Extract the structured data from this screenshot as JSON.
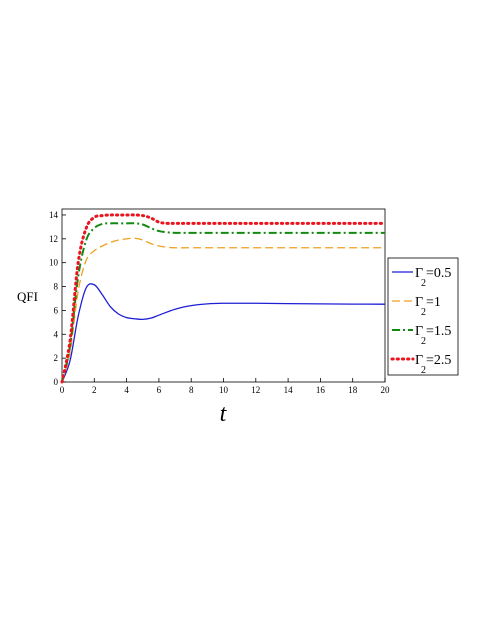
{
  "chart_data": {
    "type": "line",
    "xlabel": "t",
    "ylabel": "QFI",
    "xlim": [
      0,
      20
    ],
    "ylim": [
      0,
      14.5
    ],
    "xticks": [
      0,
      2,
      4,
      6,
      8,
      10,
      12,
      14,
      16,
      18,
      20
    ],
    "yticks": [
      0,
      2,
      4,
      6,
      8,
      10,
      12,
      14
    ],
    "grid": false,
    "legend_position": "right",
    "series": [
      {
        "name": "=0.5",
        "symbol": "Γ",
        "subscript": "2",
        "color": "#1f1fd6",
        "dash": "solid",
        "x": [
          0,
          0.5,
          1,
          1.5,
          2,
          2.5,
          3,
          3.5,
          4,
          4.5,
          5,
          5.5,
          6,
          7,
          8,
          9,
          10,
          11,
          12,
          14,
          16,
          18,
          20
        ],
        "y": [
          0,
          1.8,
          5.5,
          7.9,
          8.15,
          7.3,
          6.3,
          5.7,
          5.4,
          5.3,
          5.25,
          5.35,
          5.6,
          6.1,
          6.4,
          6.55,
          6.6,
          6.6,
          6.6,
          6.57,
          6.55,
          6.53,
          6.52
        ]
      },
      {
        "name": "=1",
        "symbol": "Γ",
        "subscript": "2",
        "color": "#f0a020",
        "dash": "dashed",
        "x": [
          0,
          0.5,
          1,
          1.5,
          2,
          2.5,
          3,
          3.5,
          4,
          4.5,
          5,
          5.5,
          6,
          6.5,
          7,
          8,
          10,
          12,
          14,
          16,
          18,
          20
        ],
        "y": [
          0,
          2.5,
          7.6,
          10.2,
          11.0,
          11.4,
          11.7,
          11.9,
          12.0,
          12.05,
          11.9,
          11.6,
          11.4,
          11.3,
          11.25,
          11.25,
          11.25,
          11.25,
          11.25,
          11.25,
          11.25,
          11.25
        ]
      },
      {
        "name": "=1.5",
        "symbol": "Γ",
        "subscript": "2",
        "color": "#128a12",
        "dash": "dashdot",
        "x": [
          0,
          0.5,
          1,
          1.5,
          2,
          2.5,
          3,
          3.5,
          4,
          4.5,
          5,
          5.5,
          6,
          6.5,
          7,
          8,
          10,
          12,
          14,
          16,
          18,
          20
        ],
        "y": [
          0,
          3.0,
          8.8,
          11.9,
          12.9,
          13.25,
          13.3,
          13.3,
          13.3,
          13.3,
          13.2,
          12.9,
          12.65,
          12.55,
          12.5,
          12.5,
          12.5,
          12.5,
          12.5,
          12.5,
          12.5,
          12.5
        ]
      },
      {
        "name": "=2.5",
        "symbol": "Γ",
        "subscript": "2",
        "color": "#e8141e",
        "dash": "dotted",
        "x": [
          0,
          0.5,
          1,
          1.5,
          2,
          2.5,
          3,
          3.5,
          4,
          4.5,
          5,
          5.5,
          6,
          6.5,
          7,
          8,
          10,
          12,
          14,
          16,
          18,
          20
        ],
        "y": [
          0,
          3.5,
          10.0,
          12.9,
          13.8,
          13.95,
          14.0,
          14.0,
          14.0,
          14.0,
          13.95,
          13.75,
          13.4,
          13.3,
          13.3,
          13.3,
          13.3,
          13.3,
          13.3,
          13.3,
          13.3,
          13.3
        ]
      }
    ]
  }
}
